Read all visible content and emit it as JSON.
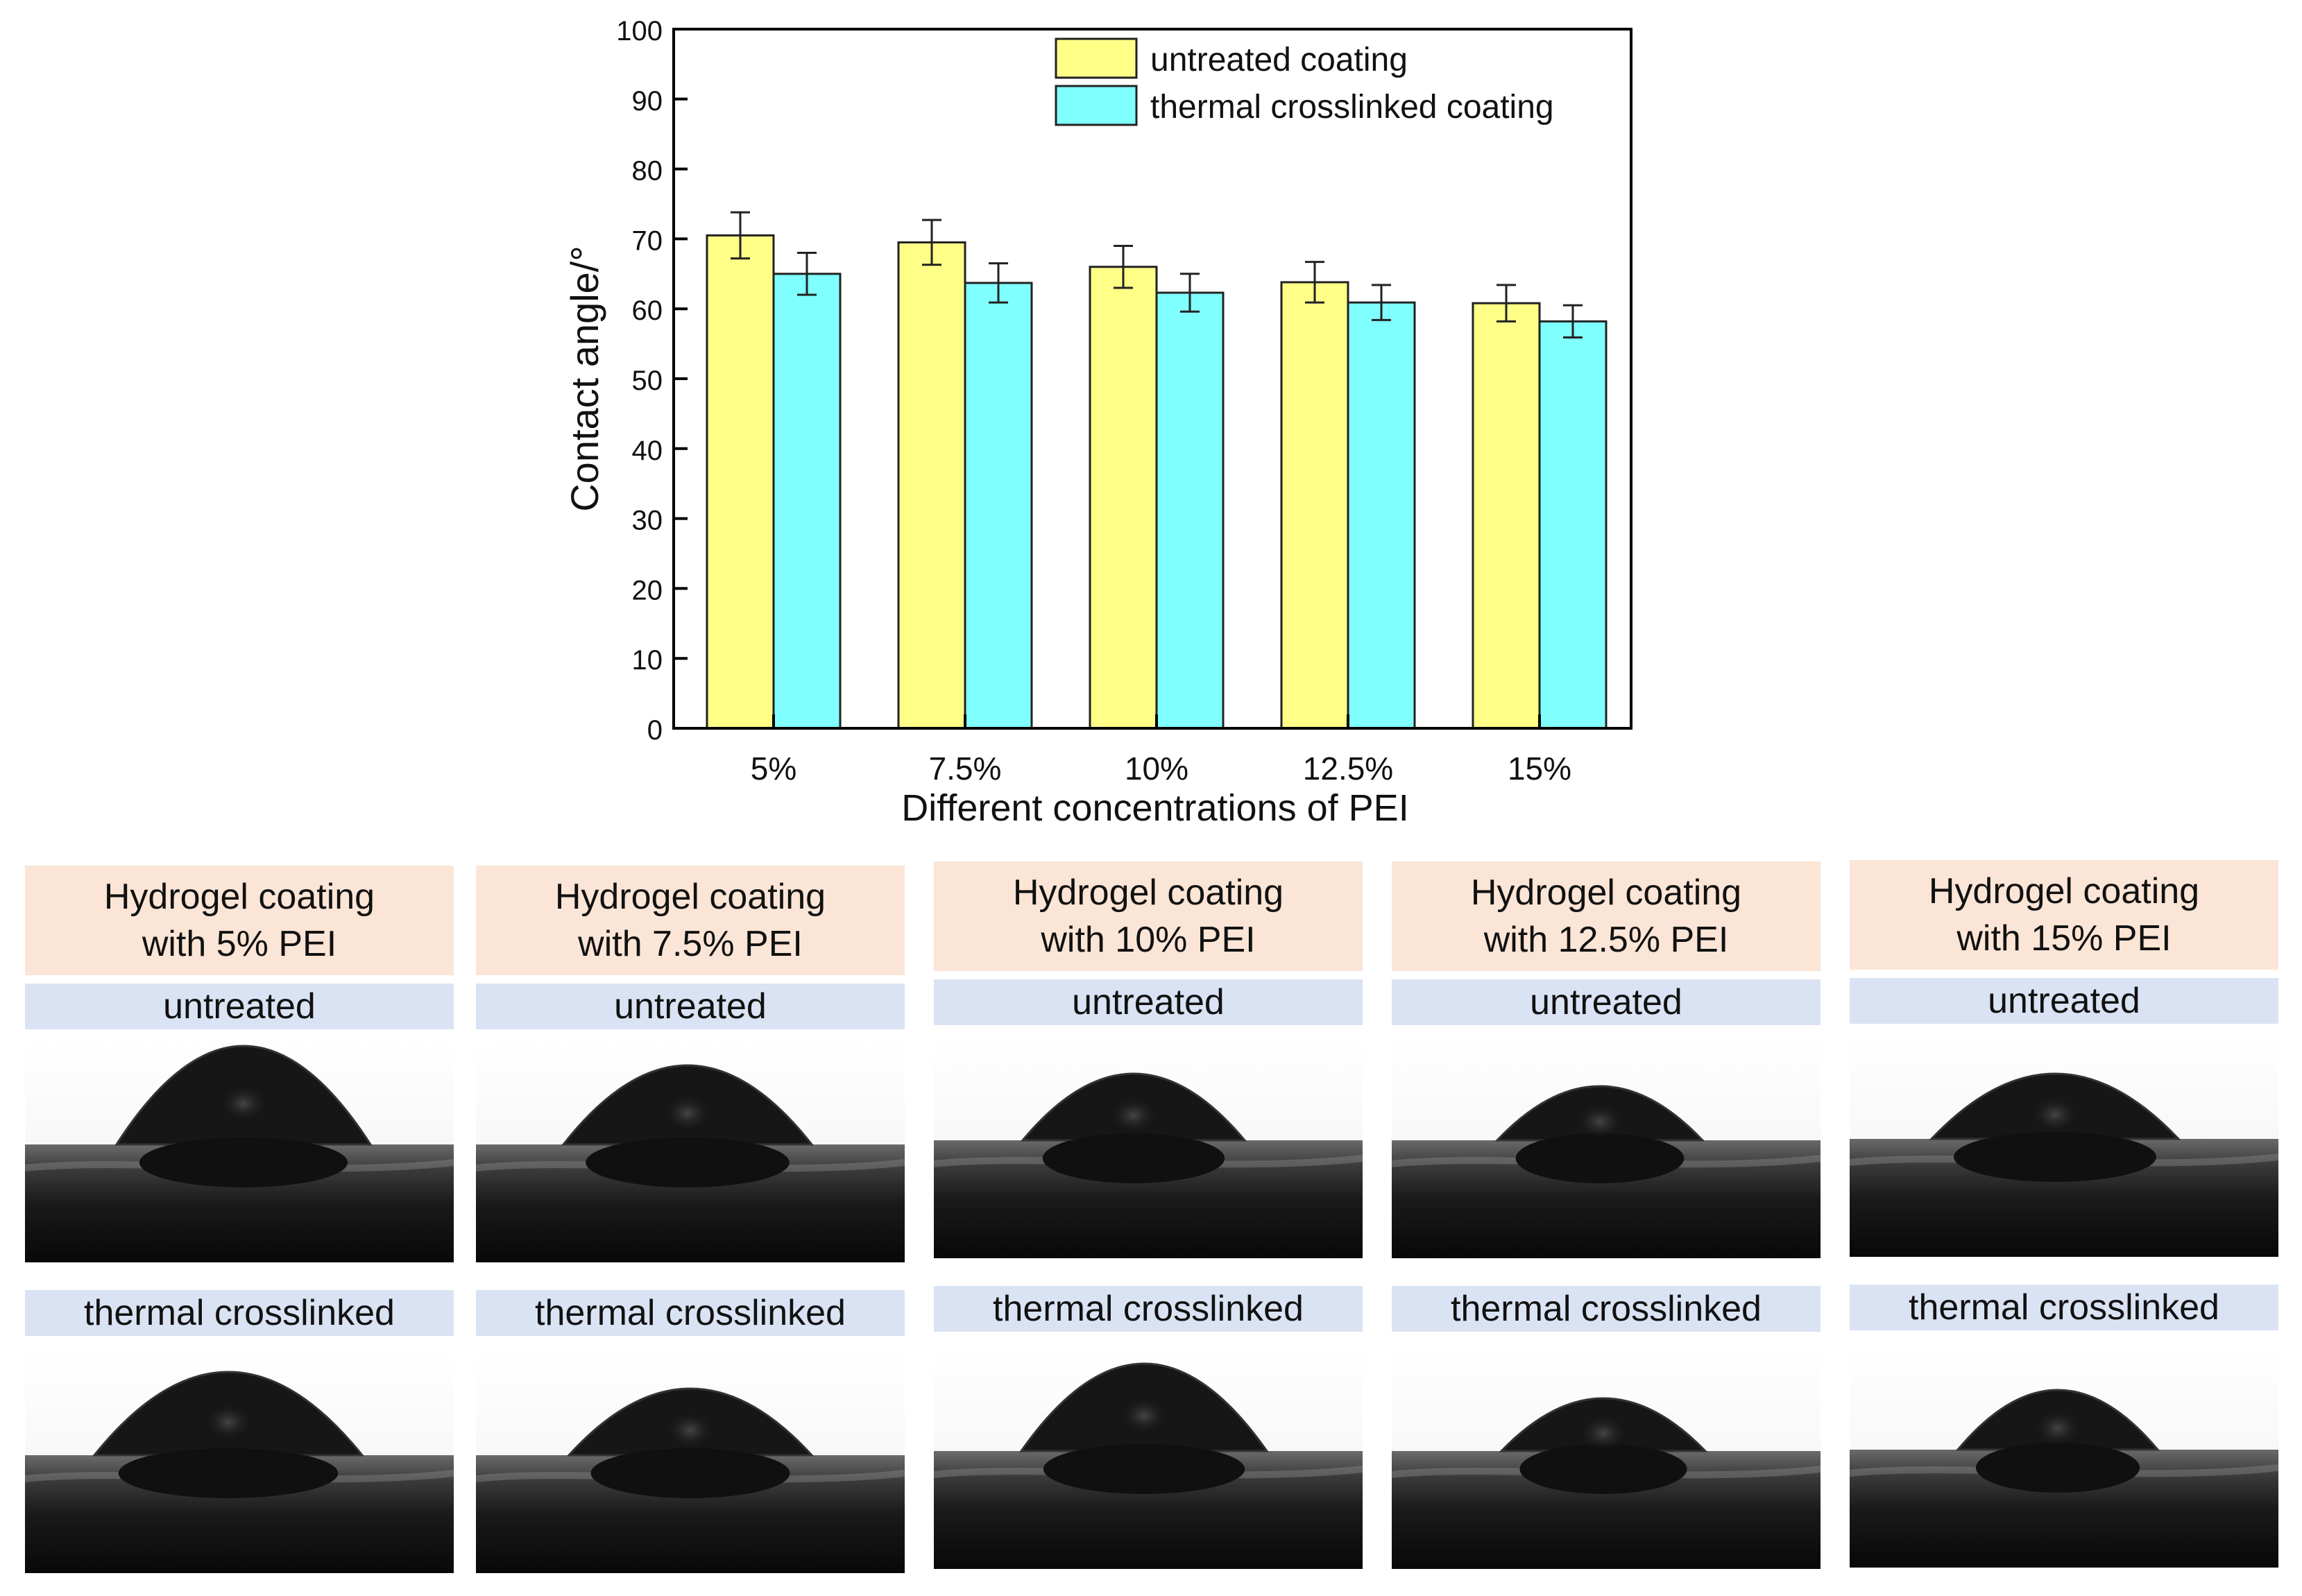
{
  "chart_data": {
    "type": "bar",
    "categories": [
      "5%",
      "7.5%",
      "10%",
      "12.5%",
      "15%"
    ],
    "series": [
      {
        "name": "untreated coating",
        "color": "#ffff88",
        "values": [
          70.5,
          69.5,
          66.0,
          63.8,
          60.8
        ],
        "errors": [
          3.3,
          3.2,
          3.0,
          2.9,
          2.6
        ]
      },
      {
        "name": "thermal crosslinked coating",
        "color": "#80ffff",
        "values": [
          65.0,
          63.7,
          62.3,
          60.9,
          58.2
        ],
        "errors": [
          3.0,
          2.8,
          2.7,
          2.5,
          2.3
        ]
      }
    ],
    "title": "",
    "xlabel": "Different concentrations of PEI",
    "ylabel": "Contact angle/°",
    "ylim": [
      0,
      100
    ],
    "yticks": [
      0,
      10,
      20,
      30,
      40,
      50,
      60,
      70,
      80,
      90,
      100
    ],
    "grid": false,
    "legend_position": "top-right"
  },
  "panels": [
    {
      "title_line1": "Hydrogel coating",
      "title_line2": "with 5% PEI",
      "untreated_label": "untreated",
      "crosslinked_label": "thermal crosslinked"
    },
    {
      "title_line1": "Hydrogel coating",
      "title_line2": "with 7.5% PEI",
      "untreated_label": "untreated",
      "crosslinked_label": "thermal crosslinked"
    },
    {
      "title_line1": "Hydrogel coating",
      "title_line2": "with 10% PEI",
      "untreated_label": "untreated",
      "crosslinked_label": "thermal crosslinked"
    },
    {
      "title_line1": "Hydrogel coating",
      "title_line2": "with 12.5% PEI",
      "untreated_label": "untreated",
      "crosslinked_label": "thermal crosslinked"
    },
    {
      "title_line1": "Hydrogel coating",
      "title_line2": "with 15% PEI",
      "untreated_label": "untreated",
      "crosslinked_label": "thermal crosslinked"
    }
  ]
}
